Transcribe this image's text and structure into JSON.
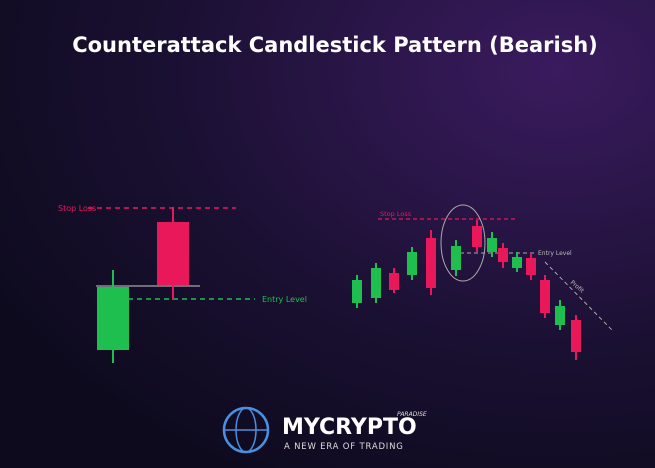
{
  "header": {
    "title": "Counterattack Candlestick Pattern (Bearish)"
  },
  "left_panel": {
    "stop_loss": "Stop Loss",
    "entry_level": "Entry Level"
  },
  "right_panel": {
    "stop_loss": "Stop Loss",
    "entry_level": "Entry Level",
    "profit": "Profit"
  },
  "logo": {
    "brand": "MYCRYPTO",
    "suffix": "PARADISE",
    "tagline": "A NEW ERA OF TRADING"
  }
}
